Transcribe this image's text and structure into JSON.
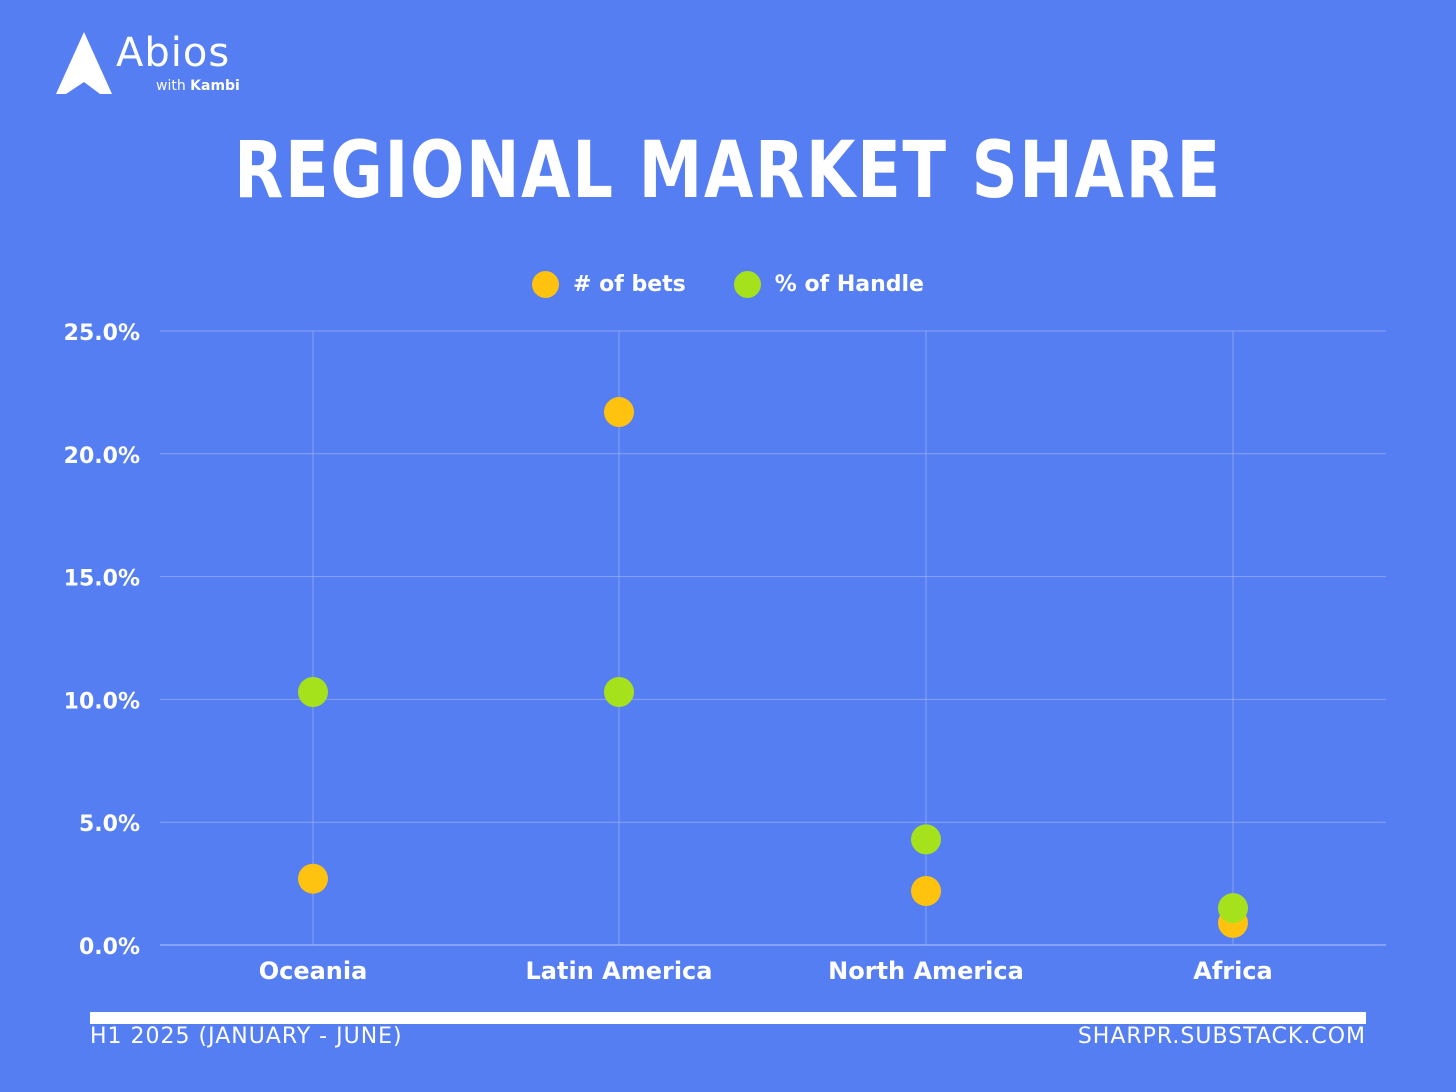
{
  "logo": {
    "name": "Abios",
    "sub_prefix": "with",
    "sub_brand": "Kambi"
  },
  "colors": {
    "background": "#557ef2",
    "bets": "#ffc20e",
    "handle": "#a6e21c",
    "grid": "#9db3f6",
    "text": "#ffffff"
  },
  "footer": {
    "left": "H1 2025 (JANUARY - JUNE)",
    "right": "SHARPR.SUBSTACK.COM"
  },
  "chart_data": {
    "type": "scatter",
    "title": "REGIONAL MARKET SHARE",
    "categories": [
      "Oceania",
      "Latin America",
      "North America",
      "Africa"
    ],
    "series": [
      {
        "name": "# of bets",
        "color": "#ffc20e",
        "values": [
          2.7,
          21.7,
          2.2,
          0.9
        ]
      },
      {
        "name": "% of Handle",
        "color": "#a6e21c",
        "values": [
          10.3,
          10.3,
          4.3,
          1.5
        ]
      }
    ],
    "ylim": [
      0,
      25
    ],
    "yticks": [
      "0.0%",
      "5.0%",
      "10.0%",
      "15.0%",
      "20.0%",
      "25.0%"
    ],
    "ytick_values": [
      0,
      5,
      10,
      15,
      20,
      25
    ],
    "legend": "top-center",
    "grid": true
  }
}
